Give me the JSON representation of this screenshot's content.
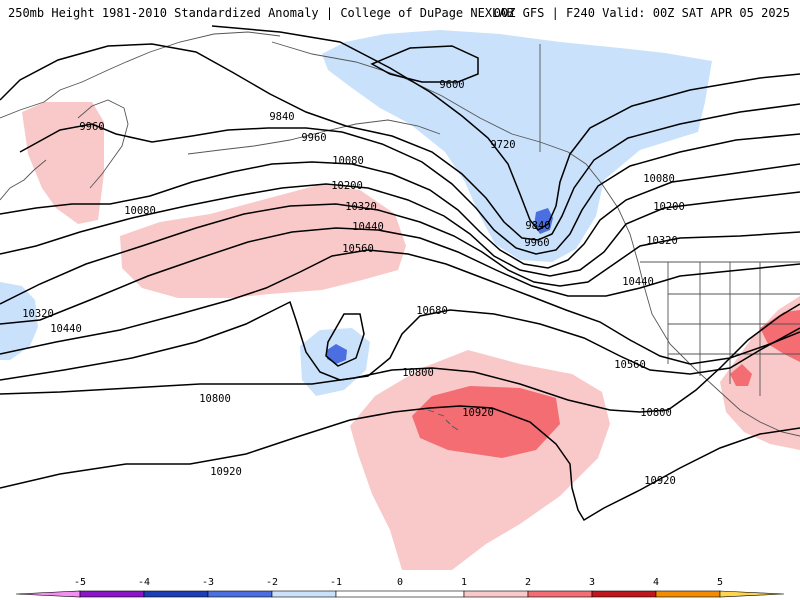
{
  "header": {
    "left_title": "250mb Height 1981-2010 Standardized Anomaly | College of DuPage NEXLAB",
    "right_title": "00Z GFS | F240 Valid: 00Z SAT APR 05 2025"
  },
  "colors": {
    "anom_neg_5": "#f48ef0",
    "anom_neg_4": "#8a16c7",
    "anom_neg_3": "#1c3fb6",
    "anom_neg_2": "#4b6fe0",
    "anom_neg_1": "#c9e1fb",
    "anom_pos_1": "#f9c9c9",
    "anom_pos_2": "#f36d73",
    "anom_pos_3": "#c0171f",
    "anom_pos_4": "#f28b00",
    "anom_pos_5": "#ffd54f",
    "coast": "#555555",
    "contour": "#000000"
  },
  "legend": {
    "ticks": [
      "-5",
      "-4",
      "-3",
      "-2",
      "-1",
      "0",
      "1",
      "2",
      "3",
      "4",
      "5"
    ]
  },
  "contour_labels": {
    "c9600_a": "9600",
    "c9720_a": "9720",
    "c9840_a": "9840",
    "c9840_b": "9840",
    "c9960_a": "9960",
    "c9960_b": "9960",
    "c9960_c": "9960",
    "c10080_a": "10080",
    "c10080_b": "10080",
    "c10080_c": "10080",
    "c10200_a": "10200",
    "c10200_b": "10200",
    "c10320_a": "10320",
    "c10320_b": "10320",
    "c10320_c": "10320",
    "c10440_a": "10440",
    "c10440_b": "10440",
    "c10440_c": "10440",
    "c10560_a": "10560",
    "c10560_b": "10560",
    "c10680_a": "10680",
    "c10800_a": "10800",
    "c10800_b": "10800",
    "c10800_c": "10800",
    "c10920_a": "10920",
    "c10920_b": "10920",
    "c10920_c": "10920"
  }
}
